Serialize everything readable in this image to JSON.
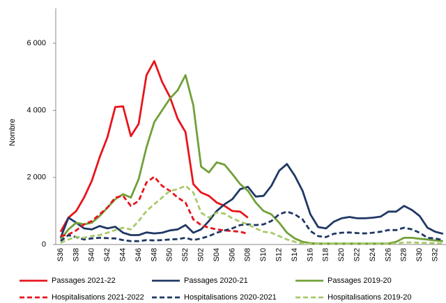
{
  "chart_data": {
    "type": "line",
    "y_label": "Nombre",
    "categories": [
      "S36",
      null,
      "S38",
      null,
      "S40",
      null,
      "S42",
      null,
      "S44",
      null,
      "S46",
      null,
      "S48",
      null,
      "S50",
      null,
      "S52",
      null,
      "S02",
      null,
      "S04",
      null,
      "S06",
      null,
      "S08",
      null,
      "S10",
      null,
      "S12",
      null,
      "S14",
      null,
      "S16",
      null,
      "S18",
      null,
      "S20",
      null,
      "S22",
      null,
      "S24",
      null,
      "S26",
      null,
      "S28",
      null,
      "S30",
      null,
      "S32",
      null
    ],
    "ylim": [
      0,
      7000
    ],
    "yticks": [
      0,
      {
        "value": 2000,
        "label": "2 000"
      },
      {
        "value": 4000,
        "label": "4 000"
      },
      {
        "value": 6000,
        "label": "6 000"
      }
    ],
    "series": [
      {
        "name": "Passages 2021-22",
        "color": "#e8141c",
        "dashed": false,
        "values": [
          380,
          800,
          1000,
          1400,
          1900,
          2600,
          3200,
          4100,
          4120,
          3230,
          3600,
          5050,
          5470,
          4850,
          4400,
          3750,
          3350,
          1800,
          1550,
          1450,
          1250,
          1150,
          1000,
          980,
          800,
          null,
          null,
          null,
          null,
          null,
          null,
          null,
          null,
          null,
          null,
          null,
          null,
          null,
          null,
          null,
          null,
          null,
          null,
          null,
          null,
          null,
          null,
          null,
          null,
          null
        ]
      },
      {
        "name": "Passages 2020-21",
        "color": "#1f3864",
        "dashed": false,
        "values": [
          200,
          800,
          650,
          480,
          450,
          550,
          480,
          530,
          350,
          280,
          280,
          360,
          330,
          350,
          420,
          450,
          580,
          350,
          450,
          700,
          1000,
          1200,
          1350,
          1650,
          1720,
          1430,
          1450,
          1750,
          2200,
          2400,
          2050,
          1600,
          900,
          520,
          480,
          680,
          780,
          820,
          780,
          780,
          800,
          830,
          980,
          980,
          1150,
          1030,
          850,
          500,
          380,
          320
        ]
      },
      {
        "name": "Passages 2019-20",
        "color": "#70a038",
        "dashed": false,
        "values": [
          150,
          450,
          650,
          600,
          650,
          850,
          1100,
          1350,
          1500,
          1400,
          1950,
          2900,
          3650,
          4000,
          4350,
          4600,
          5050,
          4150,
          2320,
          2150,
          2450,
          2380,
          2100,
          1800,
          1600,
          1250,
          1000,
          900,
          650,
          350,
          180,
          80,
          40,
          30,
          30,
          30,
          30,
          30,
          30,
          30,
          30,
          30,
          30,
          80,
          200,
          200,
          170,
          150,
          120,
          100
        ]
      },
      {
        "name": "Hospitalisations 2021-2022",
        "color": "#e8141c",
        "dashed": true,
        "values": [
          250,
          300,
          420,
          600,
          700,
          900,
          1100,
          1400,
          1450,
          1150,
          1300,
          1850,
          2020,
          1750,
          1600,
          1400,
          1250,
          750,
          580,
          500,
          450,
          420,
          400,
          380,
          320,
          null,
          null,
          null,
          null,
          null,
          null,
          null,
          null,
          null,
          null,
          null,
          null,
          null,
          null,
          null,
          null,
          null,
          null,
          null,
          null,
          null,
          null,
          null,
          null,
          null
        ]
      },
      {
        "name": "Hospitalisations 2020-2021",
        "color": "#1f3864",
        "dashed": true,
        "values": [
          100,
          280,
          220,
          150,
          180,
          200,
          190,
          180,
          130,
          100,
          100,
          130,
          120,
          130,
          150,
          160,
          200,
          130,
          180,
          250,
          350,
          420,
          480,
          580,
          600,
          580,
          600,
          700,
          900,
          980,
          900,
          750,
          400,
          250,
          220,
          320,
          350,
          360,
          340,
          330,
          350,
          380,
          430,
          430,
          500,
          450,
          350,
          200,
          180,
          130
        ]
      },
      {
        "name": "Hospitalisations 2019-20",
        "color": "#a9c96a",
        "dashed": true,
        "values": [
          50,
          150,
          230,
          200,
          250,
          280,
          350,
          430,
          500,
          450,
          700,
          1000,
          1200,
          1400,
          1600,
          1650,
          1750,
          1550,
          950,
          800,
          950,
          920,
          780,
          680,
          600,
          480,
          380,
          350,
          250,
          150,
          80,
          30,
          20,
          20,
          20,
          20,
          20,
          20,
          20,
          20,
          20,
          20,
          20,
          30,
          60,
          60,
          50,
          50,
          40,
          30
        ]
      }
    ]
  }
}
